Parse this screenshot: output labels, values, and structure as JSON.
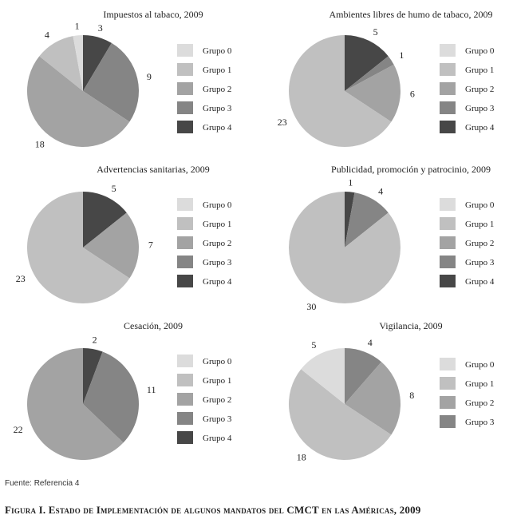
{
  "source_note": "Fuente: Referencia 4",
  "figure_caption": "Figura I. Estado de Implementación de algunos mandatos del CMCT en las Américas, 2009",
  "palette": {
    "Grupo 0": "#dcdcdc",
    "Grupo 1": "#c0c0c0",
    "Grupo 2": "#a3a3a3",
    "Grupo 3": "#858585",
    "Grupo 4": "#474747"
  },
  "chart_data": [
    {
      "type": "pie",
      "title": "Impuestos al tabaco, 2009",
      "legend": [
        "Grupo 0",
        "Grupo 1",
        "Grupo 2",
        "Grupo 3",
        "Grupo 4"
      ],
      "slices": [
        {
          "name": "Grupo 4",
          "value": 3
        },
        {
          "name": "Grupo 3",
          "value": 9
        },
        {
          "name": "Grupo 2",
          "value": 18
        },
        {
          "name": "Grupo 1",
          "value": 4
        },
        {
          "name": "Grupo 0",
          "value": 1
        }
      ]
    },
    {
      "type": "pie",
      "title": "Ambientes libres de humo de tabaco, 2009",
      "legend": [
        "Grupo 0",
        "Grupo 1",
        "Grupo 2",
        "Grupo 3",
        "Grupo 4"
      ],
      "slices": [
        {
          "name": "Grupo 4",
          "value": 5
        },
        {
          "name": "Grupo 3",
          "value": 1
        },
        {
          "name": "Grupo 2",
          "value": 6
        },
        {
          "name": "Grupo 1",
          "value": 23
        }
      ]
    },
    {
      "type": "pie",
      "title": "Advertencias sanitarias, 2009",
      "legend": [
        "Grupo 0",
        "Grupo 1",
        "Grupo 2",
        "Grupo 3",
        "Grupo 4"
      ],
      "slices": [
        {
          "name": "Grupo 4",
          "value": 5
        },
        {
          "name": "Grupo 2",
          "value": 7
        },
        {
          "name": "Grupo 1",
          "value": 23
        }
      ]
    },
    {
      "type": "pie",
      "title": "Publicidad, promoción y patrocinio, 2009",
      "legend": [
        "Grupo 0",
        "Grupo 1",
        "Grupo 2",
        "Grupo 3",
        "Grupo 4"
      ],
      "slices": [
        {
          "name": "Grupo 4",
          "value": 1
        },
        {
          "name": "Grupo 3",
          "value": 4
        },
        {
          "name": "Grupo 1",
          "value": 30
        }
      ]
    },
    {
      "type": "pie",
      "title": "Cesación, 2009",
      "legend": [
        "Grupo 0",
        "Grupo 1",
        "Grupo 2",
        "Grupo 3",
        "Grupo 4"
      ],
      "slices": [
        {
          "name": "Grupo 4",
          "value": 2
        },
        {
          "name": "Grupo 3",
          "value": 11
        },
        {
          "name": "Grupo 2",
          "value": 22
        }
      ]
    },
    {
      "type": "pie",
      "title": "Vigilancia, 2009",
      "legend": [
        "Grupo 0",
        "Grupo 1",
        "Grupo 2",
        "Grupo 3"
      ],
      "slices": [
        {
          "name": "Grupo 3",
          "value": 4
        },
        {
          "name": "Grupo 2",
          "value": 8
        },
        {
          "name": "Grupo 1",
          "value": 18
        },
        {
          "name": "Grupo 0",
          "value": 5
        }
      ]
    }
  ]
}
